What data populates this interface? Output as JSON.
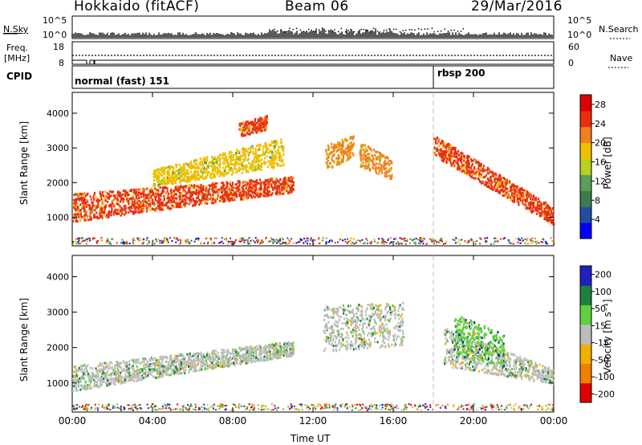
{
  "header": {
    "radar": "Hokkaido (fitACF)",
    "beam": "Beam 06",
    "date": "29/Mar/2016"
  },
  "noise_panel": {
    "left_label": "N.Sky",
    "right_label": "N.Search",
    "left_ticks": [
      "10^5",
      "10^0"
    ],
    "right_ticks": [
      "10^5",
      "10^0"
    ]
  },
  "freq_panel": {
    "left_label_1": "Freq.",
    "left_label_2": "[MHz]",
    "right_label": "Nave",
    "left_ticks": [
      "18",
      "8"
    ],
    "right_ticks": [
      "60",
      "0"
    ]
  },
  "cpid_panel": {
    "label": "CPID",
    "programs": [
      {
        "name": "normal (fast) 151",
        "start_hour": 0.0
      },
      {
        "name": "rbsp 200",
        "start_hour": 18.0
      }
    ]
  },
  "chart_data": [
    {
      "type": "heatmap",
      "panel": "power",
      "ylabel": "Slant Range [km]",
      "xlabel": "",
      "xlim": [
        0,
        24
      ],
      "ylim": [
        180,
        4600
      ],
      "yticks": [
        "1000",
        "2000",
        "3000",
        "4000"
      ],
      "colorbar": {
        "label": "Power [dB]",
        "ticks": [
          "4",
          "8",
          "12",
          "16",
          "20",
          "24",
          "28"
        ],
        "range": [
          0,
          30
        ],
        "colors": [
          "#0000ff",
          "#1f4fa0",
          "#3c7d4f",
          "#5aa05a",
          "#b8d020",
          "#f0c000",
          "#f08020",
          "#e83010",
          "#e00000"
        ]
      },
      "echo_regions": [
        {
          "x": [
            0.0,
            11.0
          ],
          "y_start": [
            900,
            1750
          ],
          "y_end": [
            1700,
            2200
          ],
          "level": "28"
        },
        {
          "x": [
            4.0,
            10.5
          ],
          "y_start": [
            1900,
            2500
          ],
          "y_end": [
            2400,
            3300
          ],
          "level": "20"
        },
        {
          "x": [
            8.3,
            9.7
          ],
          "y_start": [
            3350,
            3550
          ],
          "y_end": [
            3750,
            3950
          ],
          "level": "28"
        },
        {
          "x": [
            12.6,
            14.0
          ],
          "y_start": [
            2300,
            2800
          ],
          "y_end": [
            3100,
            3400
          ],
          "level": "24"
        },
        {
          "x": [
            14.3,
            15.9
          ],
          "y_start": [
            2500,
            2100
          ],
          "y_end": [
            3200,
            2700
          ],
          "level": "24"
        },
        {
          "x": [
            18.0,
            24.0
          ],
          "y_start": [
            2800,
            800
          ],
          "y_end": [
            3400,
            1300
          ],
          "level": "28"
        }
      ]
    },
    {
      "type": "heatmap",
      "panel": "velocity",
      "ylabel": "Slant Range [km]",
      "xlabel": "Time UT",
      "xlim": [
        0,
        24
      ],
      "ylim": [
        180,
        4600
      ],
      "xticks": [
        "00:00",
        "04:00",
        "08:00",
        "12:00",
        "16:00",
        "20:00",
        "00:00"
      ],
      "yticks": [
        "1000",
        "2000",
        "3000",
        "4000"
      ],
      "colorbar": {
        "label": "Velocity [m s⁻¹]",
        "ticks": [
          "200",
          "100",
          "50",
          "15",
          "-15",
          "-50",
          "-100",
          "-200"
        ],
        "range": [
          -250,
          250
        ],
        "colors": [
          "#2020c0",
          "#208040",
          "#60d040",
          "#bdbdbd",
          "#f0b000",
          "#f08000",
          "#e00000"
        ]
      },
      "echo_regions": [
        {
          "x": [
            0.0,
            11.0
          ],
          "y_start": [
            800,
            1800
          ],
          "y_end": [
            1500,
            2200
          ],
          "level": "-15..15"
        },
        {
          "x": [
            12.5,
            16.5
          ],
          "y_start": [
            1900,
            2100
          ],
          "y_end": [
            3200,
            3300
          ],
          "level": "-15..15"
        },
        {
          "x": [
            18.5,
            24.0
          ],
          "y_start": [
            1500,
            1000
          ],
          "y_end": [
            2600,
            1400
          ],
          "level": "-15..15"
        },
        {
          "x": [
            19.0,
            21.5
          ],
          "y_start": [
            1800,
            1500
          ],
          "y_end": [
            3000,
            2400
          ],
          "level": "50"
        }
      ]
    }
  ]
}
